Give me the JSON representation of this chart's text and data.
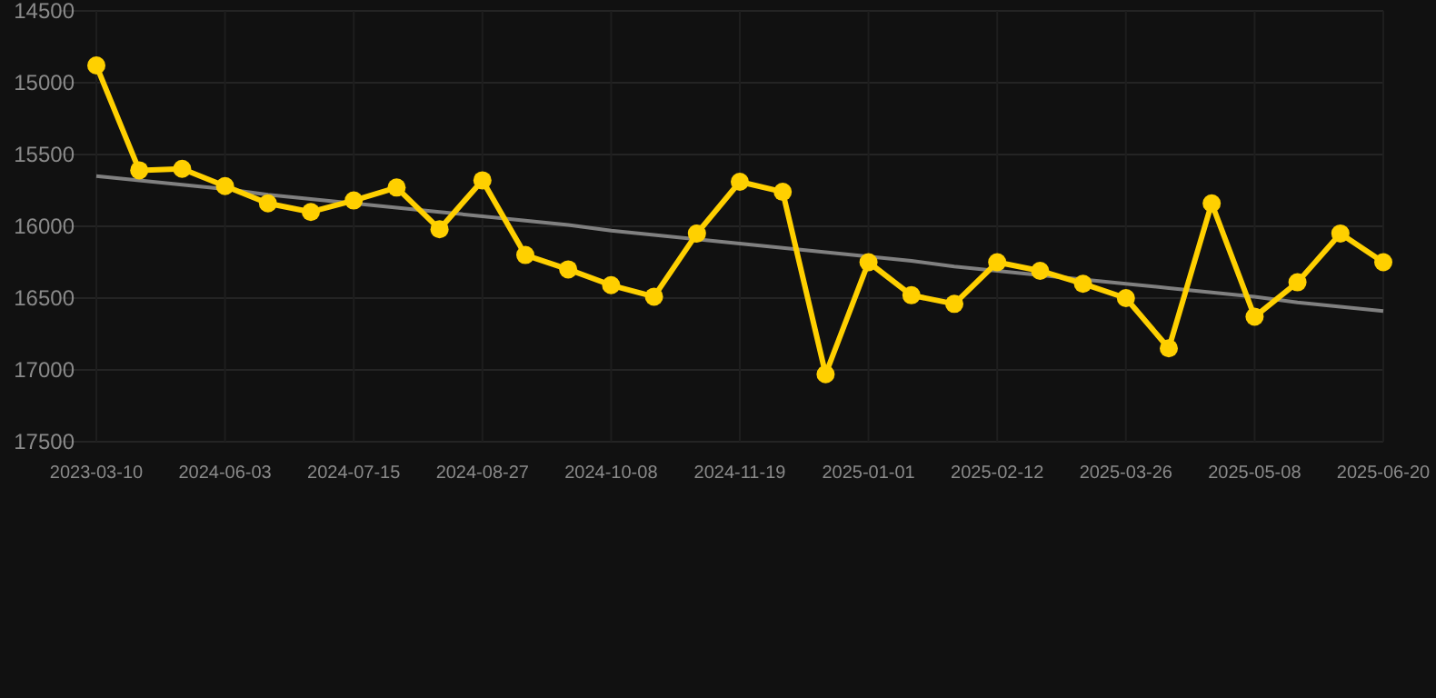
{
  "chart_data": {
    "type": "line",
    "categories": [
      "2023-03-10",
      null,
      null,
      "2024-06-03",
      null,
      null,
      "2024-07-15",
      null,
      null,
      "2024-08-27",
      null,
      null,
      "2024-10-08",
      null,
      null,
      "2024-11-19",
      null,
      null,
      "2025-01-01",
      null,
      null,
      "2025-02-12",
      null,
      null,
      "2025-03-26",
      null,
      null,
      "2025-05-08",
      null,
      null,
      "2025-06-20"
    ],
    "series": [
      {
        "color": "#ffd000",
        "marker": "circle",
        "values": [
          14880,
          15610,
          15600,
          15720,
          15840,
          15900,
          15820,
          15730,
          16020,
          15680,
          16200,
          16300,
          16410,
          16490,
          16050,
          15690,
          15760,
          17030,
          16250,
          16480,
          16540,
          16250,
          16310,
          16400,
          16500,
          16850,
          15840,
          16630,
          16390,
          16050,
          16250
        ]
      },
      {
        "type": "line",
        "color": "#808080",
        "marker": "none",
        "values": [
          15650,
          15680,
          15710,
          15740,
          15780,
          15810,
          15840,
          15870,
          15900,
          15930,
          15960,
          15990,
          16030,
          16060,
          16090,
          16120,
          16150,
          16180,
          16210,
          16240,
          16280,
          16310,
          16340,
          16370,
          16400,
          16430,
          16460,
          16490,
          16530,
          16560,
          16590
        ]
      }
    ],
    "ylim": [
      17500,
      14500
    ],
    "yticks": [
      14500,
      15000,
      15500,
      16000,
      16500,
      17000,
      17500
    ],
    "grid": true
  }
}
